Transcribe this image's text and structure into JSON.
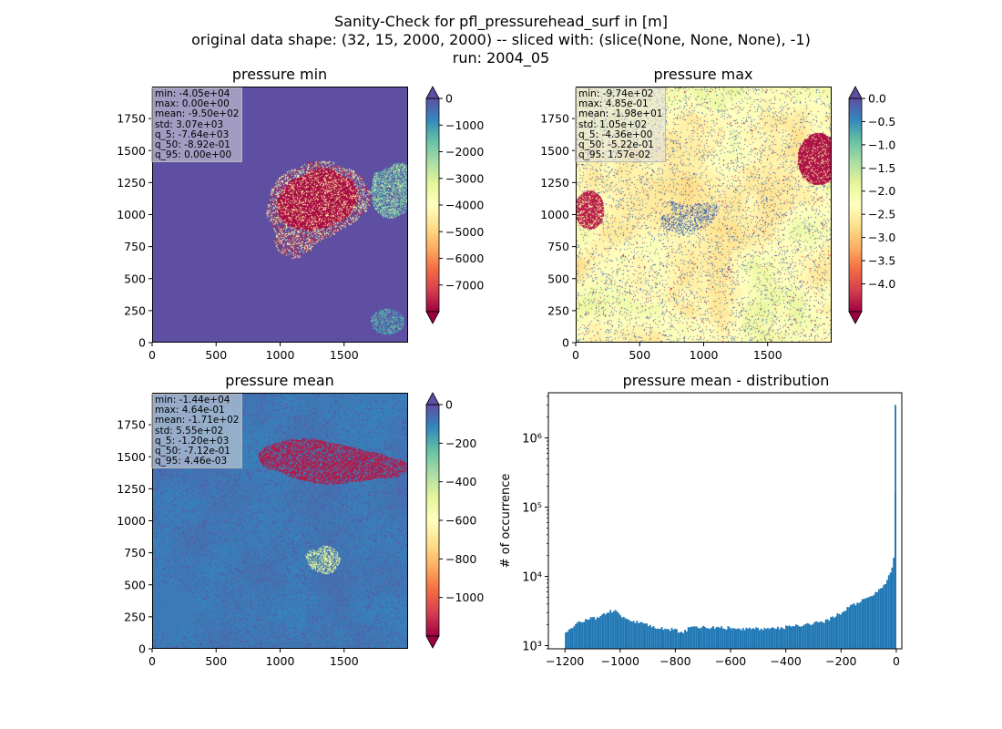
{
  "figure": {
    "title_lines": [
      "Sanity-Check for pfl_pressurehead_surf in [m]",
      "original data shape: (32, 15, 2000, 2000) -- sliced with: (slice(None, None, None), -1)",
      "run: 2004_05"
    ]
  },
  "colors": {
    "spectral": [
      "#9e0142",
      "#d53e4f",
      "#f46d43",
      "#fdae61",
      "#fee08b",
      "#ffffbf",
      "#e6f598",
      "#abdda4",
      "#66c2a5",
      "#3288bd",
      "#5e4fa2"
    ],
    "hist_bar": "#1f77b4"
  },
  "chart_data": [
    {
      "type": "heatmap",
      "title": "pressure min",
      "x_ticks": [
        "0",
        "500",
        "1000",
        "1500"
      ],
      "y_ticks": [
        "0",
        "250",
        "500",
        "750",
        "1000",
        "1250",
        "1500",
        "1750"
      ],
      "xlim": [
        0,
        2000
      ],
      "ylim": [
        0,
        2000
      ],
      "colormap": "Spectral",
      "clim": [
        -8000,
        0
      ],
      "colorbar_ticks": [
        "0",
        "−1000",
        "−2000",
        "−3000",
        "−4000",
        "−5000",
        "−6000",
        "−7000"
      ],
      "colorbar_extend": "both",
      "stats": [
        "min: -4.05e+04",
        "max: 0.00e+00",
        "mean: -9.50e+02",
        "std: 3.07e+03",
        "q_5: -7.64e+03",
        "q_50: -8.92e-01",
        "q_95: 0.00e+00"
      ]
    },
    {
      "type": "heatmap",
      "title": "pressure max",
      "x_ticks": [
        "0",
        "500",
        "1000",
        "1500"
      ],
      "y_ticks": [
        "0",
        "250",
        "500",
        "750",
        "1000",
        "1250",
        "1500",
        "1750"
      ],
      "xlim": [
        0,
        2000
      ],
      "ylim": [
        0,
        2000
      ],
      "colormap": "Spectral",
      "clim": [
        -4.6,
        0
      ],
      "colorbar_ticks": [
        "0.0",
        "−0.5",
        "−1.0",
        "−1.5",
        "−2.0",
        "−2.5",
        "−3.0",
        "−3.5",
        "−4.0"
      ],
      "colorbar_extend": "both",
      "stats": [
        "min: -9.74e+02",
        "max: 4.85e-01",
        "mean: -1.98e+01",
        "std: 1.05e+02",
        "q_5: -4.36e+00",
        "q_50: -5.22e-01",
        "q_95: 1.57e-02"
      ]
    },
    {
      "type": "heatmap",
      "title": "pressure mean",
      "x_ticks": [
        "0",
        "500",
        "1000",
        "1500"
      ],
      "y_ticks": [
        "0",
        "250",
        "500",
        "750",
        "1000",
        "1250",
        "1500",
        "1750"
      ],
      "xlim": [
        0,
        2000
      ],
      "ylim": [
        0,
        2000
      ],
      "colormap": "Spectral",
      "clim": [
        -1200,
        0
      ],
      "colorbar_ticks": [
        "0",
        "−200",
        "−400",
        "−600",
        "−800",
        "−1000"
      ],
      "colorbar_extend": "both",
      "stats": [
        "min: -1.44e+04",
        "max: 4.64e-01",
        "mean: -1.71e+02",
        "std: 5.55e+02",
        "q_5: -1.20e+03",
        "q_50: -7.12e-01",
        "q_95: 4.46e-03"
      ]
    },
    {
      "type": "bar",
      "title": "pressure mean - distribution",
      "ylabel": "# of occurrence",
      "y_scale": "log",
      "xlim": [
        -1260,
        20
      ],
      "ylim": [
        900,
        4500000
      ],
      "x_ticks": [
        "−1200",
        "−1000",
        "−800",
        "−600",
        "−400",
        "−200",
        "0"
      ],
      "y_ticks": [
        "10³",
        "10⁴",
        "10⁵",
        "10⁶"
      ],
      "bin_width": 6,
      "bin_anchors": [
        {
          "x": -1200,
          "y": 1500
        },
        {
          "x": -1180,
          "y": 1700
        },
        {
          "x": -1150,
          "y": 2200
        },
        {
          "x": -1120,
          "y": 2400
        },
        {
          "x": -1080,
          "y": 2500
        },
        {
          "x": -1050,
          "y": 2900
        },
        {
          "x": -1020,
          "y": 3300
        },
        {
          "x": -1000,
          "y": 2700
        },
        {
          "x": -960,
          "y": 2300
        },
        {
          "x": -900,
          "y": 2000
        },
        {
          "x": -850,
          "y": 1800
        },
        {
          "x": -800,
          "y": 1700
        },
        {
          "x": -780,
          "y": 1500
        },
        {
          "x": -740,
          "y": 1900
        },
        {
          "x": -600,
          "y": 1800
        },
        {
          "x": -500,
          "y": 1750
        },
        {
          "x": -400,
          "y": 1850
        },
        {
          "x": -300,
          "y": 2100
        },
        {
          "x": -250,
          "y": 2300
        },
        {
          "x": -200,
          "y": 3000
        },
        {
          "x": -150,
          "y": 4000
        },
        {
          "x": -100,
          "y": 5000
        },
        {
          "x": -50,
          "y": 7000
        },
        {
          "x": -30,
          "y": 9000
        },
        {
          "x": -15,
          "y": 14000
        },
        {
          "x": -5,
          "y": 23000
        },
        {
          "x": 0,
          "y": 3000000
        }
      ]
    }
  ]
}
